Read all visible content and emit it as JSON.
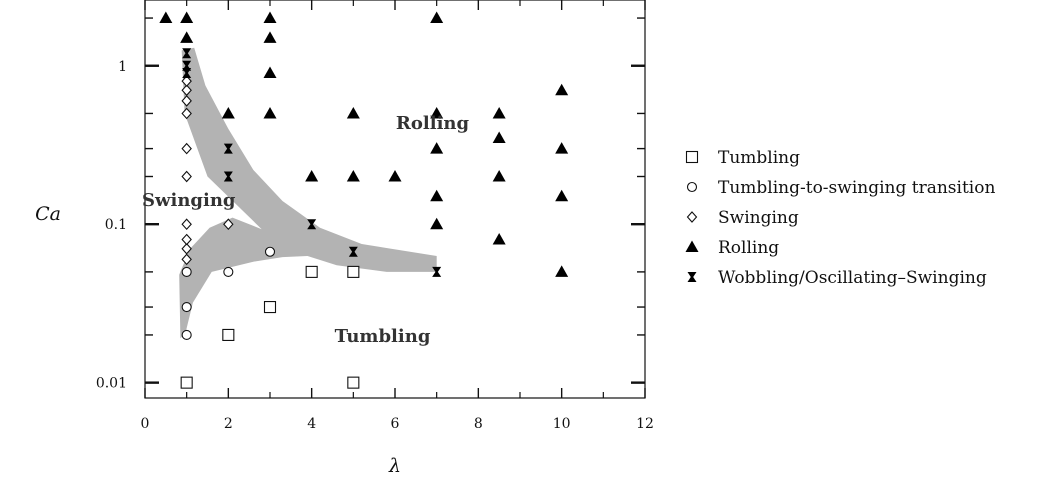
{
  "chart_data": {
    "type": "scatter",
    "xlabel": "λ",
    "ylabel": "Ca",
    "xlim": [
      0,
      12
    ],
    "ylim": [
      0.008,
      2.6
    ],
    "yscale": "log",
    "grid": false,
    "legend_position": "right",
    "x_ticks": [
      "0",
      "2",
      "4",
      "6",
      "8",
      "10",
      "12"
    ],
    "y_ticks": [
      "0.01",
      "0.1",
      "1"
    ],
    "region_labels": [
      "Rolling",
      "Swinging",
      "Tumbling"
    ],
    "series": [
      {
        "name": "Tumbling",
        "marker": "open-square",
        "points": [
          [
            1,
            0.01
          ],
          [
            2,
            0.02
          ],
          [
            3,
            0.03
          ],
          [
            4,
            0.05
          ],
          [
            5,
            0.05
          ],
          [
            5,
            0.01
          ]
        ]
      },
      {
        "name": "Tumbling-to-swinging transition",
        "marker": "open-circle",
        "points": [
          [
            1,
            0.02
          ],
          [
            1,
            0.03
          ],
          [
            1,
            0.05
          ],
          [
            2,
            0.05
          ],
          [
            3,
            0.067
          ]
        ]
      },
      {
        "name": "Swinging",
        "marker": "open-diamond",
        "points": [
          [
            1,
            0.06
          ],
          [
            1,
            0.07
          ],
          [
            1,
            0.08
          ],
          [
            1,
            0.1
          ],
          [
            1,
            0.2
          ],
          [
            1,
            0.3
          ],
          [
            1,
            0.5
          ],
          [
            1,
            0.6
          ],
          [
            1,
            0.7
          ],
          [
            1,
            0.8
          ],
          [
            2,
            0.1
          ]
        ]
      },
      {
        "name": "Rolling",
        "marker": "filled-triangle",
        "points": [
          [
            0.5,
            2
          ],
          [
            1,
            2
          ],
          [
            1,
            1.5
          ],
          [
            2,
            0.5
          ],
          [
            3,
            2
          ],
          [
            3,
            1.5
          ],
          [
            3,
            0.9
          ],
          [
            3,
            0.5
          ],
          [
            4,
            0.2
          ],
          [
            5,
            0.5
          ],
          [
            5,
            0.2
          ],
          [
            6,
            0.2
          ],
          [
            7,
            2
          ],
          [
            7,
            0.5
          ],
          [
            7,
            0.3
          ],
          [
            7,
            0.15
          ],
          [
            7,
            0.1
          ],
          [
            8.5,
            0.5
          ],
          [
            8.5,
            0.35
          ],
          [
            8.5,
            0.2
          ],
          [
            8.5,
            0.08
          ],
          [
            10,
            0.7
          ],
          [
            10,
            0.3
          ],
          [
            10,
            0.15
          ],
          [
            10,
            0.05
          ]
        ]
      },
      {
        "name": "Wobbling/Oscillating–Swinging",
        "marker": "bowtie",
        "points": [
          [
            1,
            1.2
          ],
          [
            1,
            1.0
          ],
          [
            1,
            0.9
          ],
          [
            2,
            0.3
          ],
          [
            2,
            0.2
          ],
          [
            4,
            0.1
          ],
          [
            5,
            0.067
          ],
          [
            7,
            0.05
          ]
        ]
      }
    ]
  }
}
